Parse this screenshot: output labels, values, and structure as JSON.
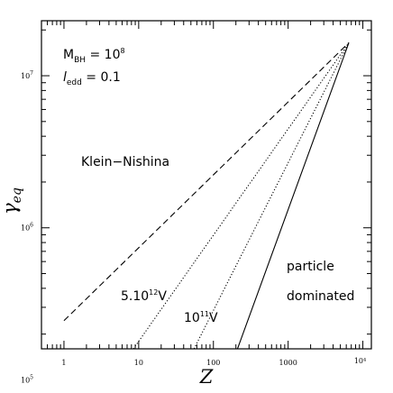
{
  "chart_data": {
    "type": "line",
    "xscale": "log",
    "yscale": "log",
    "xlabel": "Z",
    "ylabel": "γ",
    "ylabel_sub": "eq",
    "xlim": [
      0.5,
      13000
    ],
    "ylim": [
      160000,
      23000000
    ],
    "grid": false,
    "x_ticks": [
      {
        "value": 1,
        "label": "1"
      },
      {
        "value": 10,
        "label": "10"
      },
      {
        "value": 100,
        "label": "100"
      },
      {
        "value": 1000,
        "label": "1000"
      },
      {
        "value": 10000,
        "label": "10⁴"
      }
    ],
    "y_ticks": [
      {
        "value": 1000000,
        "base": "10",
        "exp": "6"
      },
      {
        "value": 10000000,
        "base": "10",
        "exp": "7"
      },
      {
        "value": 100000,
        "base": "10",
        "exp": "5"
      }
    ],
    "series": [
      {
        "style": "dashed",
        "x": [
          1,
          6500
        ],
        "y": [
          245000,
          16500000
        ]
      },
      {
        "style": "dotted",
        "x": [
          8.5,
          6500
        ],
        "y": [
          160000,
          16500000
        ]
      },
      {
        "style": "dotted",
        "x": [
          55,
          6500
        ],
        "y": [
          160000,
          16500000
        ]
      },
      {
        "style": "solid",
        "x": [
          210,
          6500
        ],
        "y": [
          160000,
          16500000
        ]
      }
    ],
    "annotations": {
      "mbh_label": "M",
      "mbh_sub": "BH",
      "mbh_eq": " = 10",
      "mbh_exp": "8",
      "ledd_label": "l",
      "ledd_sub": "edd",
      "ledd_eq": " = 0.1",
      "klein": "Klein−Nishina",
      "v1_base": "5.10",
      "v1_exp": "12",
      "v1_unit": "V",
      "v2_base": "10",
      "v2_exp": "11",
      "v2_unit": "V",
      "particle": "particle",
      "dominated": "dominated"
    }
  }
}
